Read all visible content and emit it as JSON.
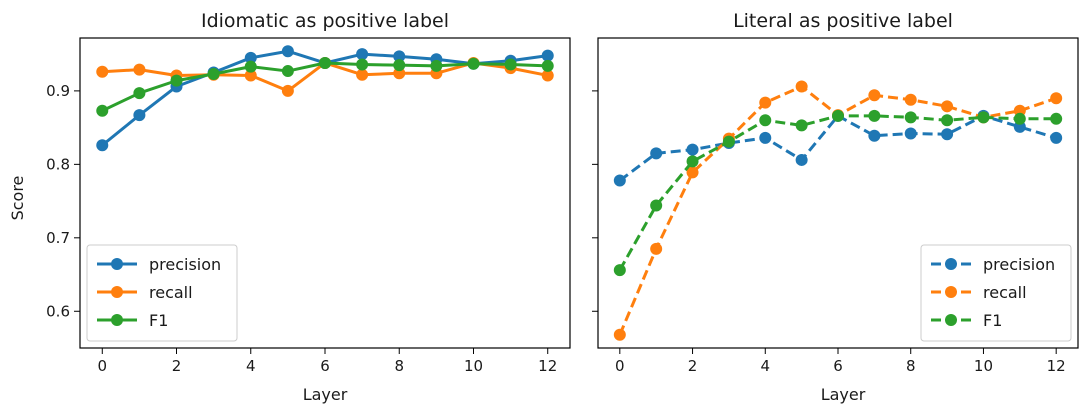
{
  "chart_data": [
    {
      "type": "line",
      "title": "Idiomatic as positive label",
      "xlabel": "Layer",
      "ylabel": "Score",
      "xlim": [
        -0.6,
        12.6
      ],
      "ylim": [
        0.55,
        0.972
      ],
      "xticks": [
        0,
        2,
        4,
        6,
        8,
        10,
        12
      ],
      "yticks": [
        0.6,
        0.7,
        0.8,
        0.9
      ],
      "ytick_labels": [
        "0.6",
        "0.7",
        "0.8",
        "0.9"
      ],
      "line_style": "solid",
      "legend_position": "lower-left",
      "grid": false,
      "x": [
        0,
        1,
        2,
        3,
        4,
        5,
        6,
        7,
        8,
        9,
        10,
        11,
        12
      ],
      "series": [
        {
          "name": "precision",
          "color": "#1f77b4",
          "values": [
            0.826,
            0.867,
            0.906,
            0.925,
            0.945,
            0.954,
            0.938,
            0.95,
            0.947,
            0.943,
            0.937,
            0.941,
            0.948
          ]
        },
        {
          "name": "recall",
          "color": "#ff7f0e",
          "values": [
            0.926,
            0.929,
            0.921,
            0.922,
            0.921,
            0.9,
            0.938,
            0.922,
            0.924,
            0.924,
            0.938,
            0.931,
            0.921
          ]
        },
        {
          "name": "F1",
          "color": "#2ca02c",
          "values": [
            0.873,
            0.897,
            0.914,
            0.923,
            0.933,
            0.927,
            0.938,
            0.936,
            0.935,
            0.934,
            0.937,
            0.936,
            0.934
          ]
        }
      ]
    },
    {
      "type": "line",
      "title": "Literal as positive label",
      "xlabel": "Layer",
      "ylabel": "",
      "xlim": [
        -0.6,
        12.6
      ],
      "ylim": [
        0.55,
        0.972
      ],
      "xticks": [
        0,
        2,
        4,
        6,
        8,
        10,
        12
      ],
      "yticks": [
        0.6,
        0.7,
        0.8,
        0.9
      ],
      "ytick_labels": [],
      "line_style": "dashed",
      "legend_position": "lower-right",
      "grid": false,
      "x": [
        0,
        1,
        2,
        3,
        4,
        5,
        6,
        7,
        8,
        9,
        10,
        11,
        12
      ],
      "series": [
        {
          "name": "precision",
          "color": "#1f77b4",
          "values": [
            0.778,
            0.815,
            0.82,
            0.829,
            0.836,
            0.806,
            0.866,
            0.839,
            0.842,
            0.841,
            0.866,
            0.851,
            0.836
          ]
        },
        {
          "name": "recall",
          "color": "#ff7f0e",
          "values": [
            0.568,
            0.685,
            0.789,
            0.835,
            0.884,
            0.906,
            0.867,
            0.894,
            0.888,
            0.879,
            0.864,
            0.873,
            0.89
          ]
        },
        {
          "name": "F1",
          "color": "#2ca02c",
          "values": [
            0.656,
            0.744,
            0.804,
            0.831,
            0.86,
            0.853,
            0.866,
            0.866,
            0.864,
            0.86,
            0.864,
            0.862,
            0.862
          ]
        }
      ]
    }
  ]
}
